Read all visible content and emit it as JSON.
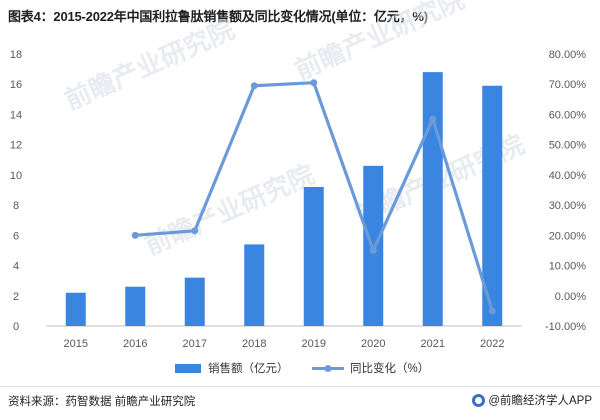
{
  "title": "图表4：2015-2022年中国利拉鲁肽销售额及同比变化情况(单位：亿元，%)",
  "footer": {
    "source": "资料来源：药智数据 前瞻产业研究院",
    "brand": "@前瞻经济学人APP"
  },
  "watermark": {
    "text": "前瞻产业研究院"
  },
  "colors": {
    "bar": "#3a85e0",
    "line": "#6a9ad8",
    "axis_text": "#595959"
  },
  "chart_data": {
    "type": "bar",
    "categories": [
      "2015",
      "2016",
      "2017",
      "2018",
      "2019",
      "2020",
      "2021",
      "2022"
    ],
    "series": [
      {
        "name": "销售额（亿元）",
        "type": "bar",
        "axis": "left",
        "values": [
          2.2,
          2.6,
          3.2,
          5.4,
          9.2,
          10.6,
          16.8,
          15.9
        ]
      },
      {
        "name": "同比变化（%）",
        "type": "line",
        "axis": "right",
        "values": [
          null,
          20.0,
          21.5,
          69.5,
          70.5,
          15.0,
          58.5,
          -5.0
        ]
      }
    ],
    "ylim_left": [
      0,
      18
    ],
    "ylim_right": [
      -10,
      80
    ],
    "yticks_left": [
      "0",
      "2",
      "4",
      "6",
      "8",
      "10",
      "12",
      "14",
      "16",
      "18"
    ],
    "yticks_right": [
      "-10.00%",
      "0.00%",
      "10.00%",
      "20.00%",
      "30.00%",
      "40.00%",
      "50.00%",
      "60.00%",
      "70.00%",
      "80.00%"
    ],
    "legend_position": "bottom",
    "grid": false
  }
}
